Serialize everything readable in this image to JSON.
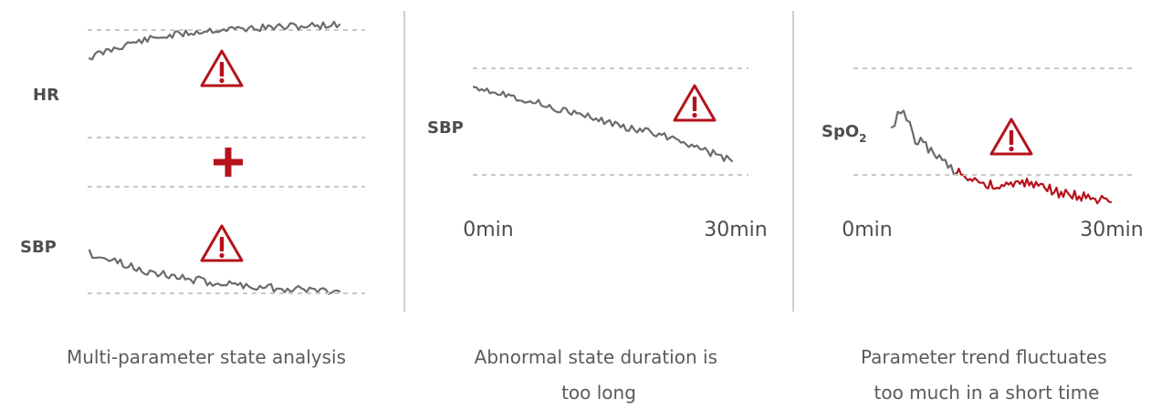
{
  "panels": [
    {
      "id": "multi",
      "params": [
        {
          "label": "HR"
        },
        {
          "label": "SBP"
        }
      ],
      "caption_lines": [
        "Multi-parameter state analysis"
      ]
    },
    {
      "id": "duration",
      "param": {
        "label": "SBP"
      },
      "axis_start": "0min",
      "axis_end": "30min",
      "caption_lines": [
        "Abnormal state duration is",
        "too long"
      ]
    },
    {
      "id": "fluctuation",
      "param": {
        "label": "SpO",
        "subscript": "2"
      },
      "axis_start": "0min",
      "axis_end": "30min",
      "caption_lines": [
        "Parameter trend fluctuates",
        "too much in a short time"
      ]
    }
  ],
  "icons": {
    "warning": "warning-triangle-icon",
    "combine": "plus-icon"
  },
  "colors": {
    "trace": "#6b6b6b",
    "alert": "#b5121b",
    "threshold_line": "#c8c8c8",
    "text": "#4d4d4d",
    "caption": "#5a5a5a"
  }
}
